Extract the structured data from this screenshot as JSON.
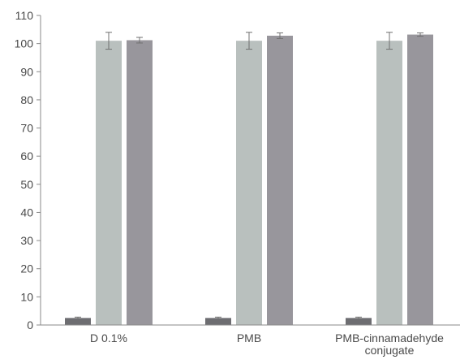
{
  "chart_data": {
    "type": "bar",
    "title": "",
    "xlabel": "",
    "ylabel": "",
    "categories": [
      "D 0.1%",
      "PMB",
      "PMB-cinnamadehyde conjugate"
    ],
    "series": [
      {
        "values": [
          2.5,
          2.5,
          2.5
        ],
        "errors": [
          0.3,
          0.3,
          0.3
        ],
        "color": "#6d6d71"
      },
      {
        "values": [
          101.0,
          101.0,
          101.0
        ],
        "errors": [
          3.0,
          3.0,
          3.0
        ],
        "color": "#b9c0be"
      },
      {
        "values": [
          101.2,
          102.8,
          103.2
        ],
        "errors": [
          1.0,
          1.0,
          0.6
        ],
        "color": "#98969c"
      }
    ],
    "ylim": [
      0,
      110
    ],
    "yticks": [
      0,
      10,
      20,
      30,
      40,
      50,
      60,
      70,
      80,
      90,
      100,
      110
    ],
    "grid": false,
    "legend": "none",
    "axis_color": "#8a8a8a",
    "error_bar_color": "#707070"
  }
}
